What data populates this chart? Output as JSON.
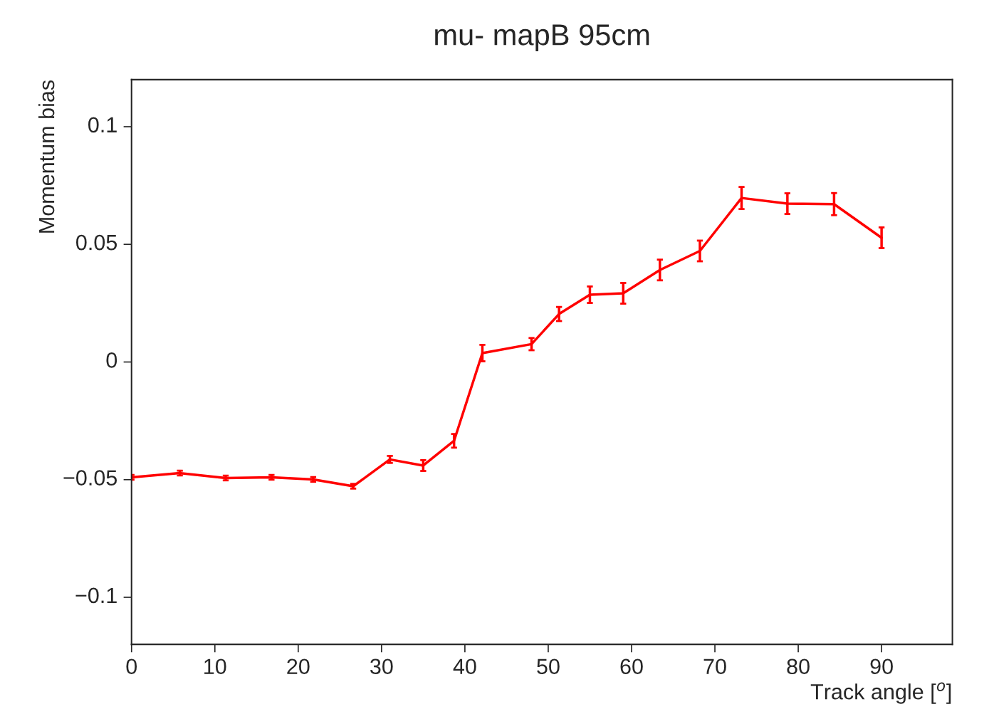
{
  "chart_data": {
    "type": "line",
    "title": "mu- mapB 95cm",
    "xlabel": "Track angle [$^{o}$]",
    "ylabel": "Momentum bias",
    "x": [
      0,
      5.8,
      11.3,
      16.8,
      21.8,
      26.6,
      31.0,
      35.0,
      38.7,
      42.1,
      48.0,
      51.3,
      55.0,
      59.0,
      63.4,
      68.2,
      73.2,
      78.7,
      84.3,
      90.0
    ],
    "series": [
      {
        "color": "#ff0000",
        "values": [
          -0.049,
          -0.0472,
          -0.0493,
          -0.049,
          -0.0499,
          -0.0528,
          -0.0414,
          -0.044,
          -0.0335,
          0.0038,
          0.0076,
          0.0204,
          0.0286,
          0.0292,
          0.0391,
          0.0472,
          0.0697,
          0.0673,
          0.0671,
          0.0528
        ],
        "errors": [
          0.001,
          0.001,
          0.001,
          0.001,
          0.001,
          0.001,
          0.0015,
          0.0023,
          0.0029,
          0.0035,
          0.0026,
          0.003,
          0.0035,
          0.0044,
          0.0044,
          0.0044,
          0.0047,
          0.0044,
          0.0047,
          0.0044
        ]
      }
    ],
    "xlim": [
      0,
      98.5
    ],
    "ylim": [
      -0.12,
      0.12
    ],
    "xticks": [
      0,
      10,
      20,
      30,
      40,
      50,
      60,
      70,
      80,
      90
    ],
    "yticks": [
      {
        "value": -0.1,
        "label": "−0.1"
      },
      {
        "value": -0.05,
        "label": "−0.05"
      },
      0,
      0.05,
      0.1
    ],
    "grid": false,
    "marker": "none",
    "line_style": "solid"
  }
}
